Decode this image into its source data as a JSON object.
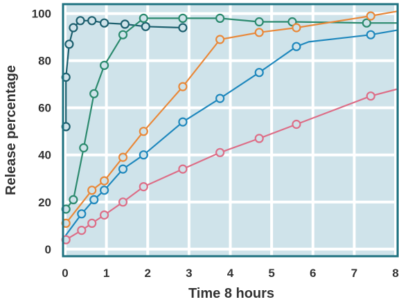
{
  "chart_data": {
    "type": "line",
    "title": "",
    "xlabel": "Time 8 hours",
    "ylabel": "Release percentage",
    "xlim": [
      -0.05,
      8.05
    ],
    "ylim": [
      -3,
      104
    ],
    "x_ticks": [
      {
        "value": 0,
        "label": "0"
      },
      {
        "value": 1,
        "label": "1"
      },
      {
        "value": 2,
        "label": "2"
      },
      {
        "value": 3,
        "label": "3"
      },
      {
        "value": 4,
        "label": "4"
      },
      {
        "value": 5,
        "label": "5"
      },
      {
        "value": 6,
        "label": "6"
      },
      {
        "value": 7,
        "label": "7"
      },
      {
        "value": 8,
        "label": "8"
      }
    ],
    "y_ticks": [
      {
        "value": 0,
        "label": "0"
      },
      {
        "value": 20,
        "label": "20"
      },
      {
        "value": 40,
        "label": "40"
      },
      {
        "value": 60,
        "label": "60"
      },
      {
        "value": 80,
        "label": "80"
      },
      {
        "value": 100,
        "label": "100"
      }
    ],
    "grid": true,
    "legend": "none",
    "colors": {
      "plot_background": "#cfe3ea",
      "plot_border": "#1e7280",
      "grid": "#ffffff",
      "text": "#333333"
    },
    "series": [
      {
        "color": "#1c5f6e",
        "line": [
          [
            0.02,
            52
          ],
          [
            0.02,
            73
          ],
          [
            0.1,
            87
          ],
          [
            0.2,
            94
          ],
          [
            0.37,
            97
          ],
          [
            0.65,
            97
          ],
          [
            0.95,
            96
          ],
          [
            1.45,
            95.5
          ],
          [
            1.95,
            94.5
          ],
          [
            2.85,
            94
          ]
        ],
        "points": [
          [
            0.02,
            52
          ],
          [
            0.02,
            73
          ],
          [
            0.1,
            87
          ],
          [
            0.2,
            94
          ],
          [
            0.37,
            97
          ],
          [
            0.65,
            97
          ],
          [
            0.95,
            96
          ],
          [
            1.45,
            95.5
          ],
          [
            1.95,
            94.5
          ],
          [
            2.85,
            94
          ]
        ]
      },
      {
        "color": "#2b8a6e",
        "line": [
          [
            0.02,
            17
          ],
          [
            0.2,
            21
          ],
          [
            0.45,
            43
          ],
          [
            0.7,
            66
          ],
          [
            0.95,
            78
          ],
          [
            1.4,
            91
          ],
          [
            1.9,
            98
          ],
          [
            2.85,
            98
          ],
          [
            3.75,
            98
          ],
          [
            4.7,
            96.5
          ],
          [
            5.5,
            96.5
          ],
          [
            7.3,
            96
          ],
          [
            8.05,
            96
          ]
        ],
        "points": [
          [
            0.02,
            17
          ],
          [
            0.2,
            21
          ],
          [
            0.45,
            43
          ],
          [
            0.7,
            66
          ],
          [
            0.95,
            78
          ],
          [
            1.4,
            91
          ],
          [
            1.9,
            98
          ],
          [
            2.85,
            98
          ],
          [
            3.75,
            98
          ],
          [
            4.7,
            96.5
          ],
          [
            5.5,
            96.5
          ],
          [
            7.3,
            96
          ]
        ]
      },
      {
        "color": "#e98839",
        "line": [
          [
            0.02,
            11
          ],
          [
            0.65,
            25
          ],
          [
            0.95,
            29
          ],
          [
            1.4,
            39
          ],
          [
            1.9,
            50
          ],
          [
            2.85,
            69
          ],
          [
            3.75,
            89
          ],
          [
            4.7,
            92
          ],
          [
            5.6,
            94
          ],
          [
            7.4,
            99
          ],
          [
            8.05,
            101
          ]
        ],
        "points": [
          [
            0.02,
            11
          ],
          [
            0.65,
            25
          ],
          [
            0.95,
            29
          ],
          [
            1.4,
            39
          ],
          [
            1.9,
            50
          ],
          [
            2.85,
            69
          ],
          [
            3.75,
            89
          ],
          [
            4.7,
            92
          ],
          [
            5.6,
            94
          ],
          [
            7.4,
            99
          ]
        ]
      },
      {
        "color": "#1f88bd",
        "line": [
          [
            0.02,
            6
          ],
          [
            0.4,
            15
          ],
          [
            0.7,
            21
          ],
          [
            0.95,
            25
          ],
          [
            1.4,
            34
          ],
          [
            1.9,
            40
          ],
          [
            2.85,
            54
          ],
          [
            3.75,
            64
          ],
          [
            4.7,
            75
          ],
          [
            5.6,
            86
          ],
          [
            5.9,
            88
          ],
          [
            7.4,
            91
          ],
          [
            8.05,
            93
          ]
        ],
        "points": [
          [
            0.4,
            15
          ],
          [
            0.7,
            21
          ],
          [
            0.95,
            25
          ],
          [
            1.4,
            34
          ],
          [
            1.9,
            40
          ],
          [
            2.85,
            54
          ],
          [
            3.75,
            64
          ],
          [
            4.7,
            75
          ],
          [
            5.6,
            86
          ],
          [
            7.4,
            91
          ]
        ]
      },
      {
        "color": "#dd6e87",
        "line": [
          [
            0.02,
            4
          ],
          [
            0.4,
            8
          ],
          [
            0.65,
            11
          ],
          [
            0.95,
            14.5
          ],
          [
            1.4,
            20
          ],
          [
            1.9,
            26.5
          ],
          [
            2.85,
            34
          ],
          [
            3.75,
            41
          ],
          [
            4.7,
            47
          ],
          [
            5.6,
            53
          ],
          [
            7.4,
            65
          ],
          [
            8.05,
            68
          ]
        ],
        "points": [
          [
            0.02,
            4
          ],
          [
            0.4,
            8
          ],
          [
            0.65,
            11
          ],
          [
            0.95,
            14.5
          ],
          [
            1.4,
            20
          ],
          [
            1.9,
            26.5
          ],
          [
            2.85,
            34
          ],
          [
            3.75,
            41
          ],
          [
            4.7,
            47
          ],
          [
            5.6,
            53
          ],
          [
            7.4,
            65
          ]
        ]
      }
    ]
  }
}
